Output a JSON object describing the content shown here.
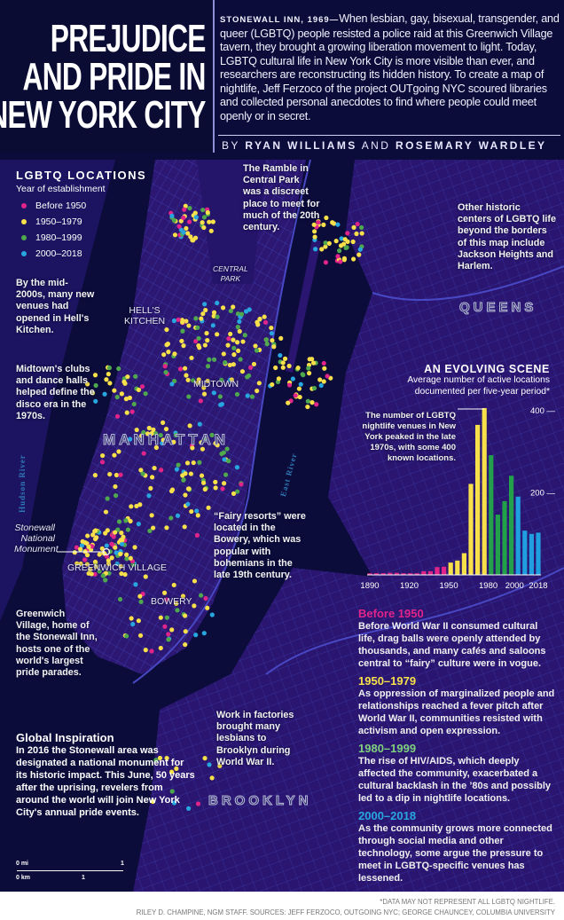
{
  "header": {
    "title_lines": [
      "PREJUDICE",
      "AND PRIDE IN",
      "NEW YORK CITY"
    ],
    "intro_lead": "STONEWALL INN, 1969—",
    "intro_text": "When lesbian, gay, bisexual, transgender, and queer (LGBTQ) people resisted a police raid at this Greenwich Village tavern, they brought a growing liberation movement to light. Today, LGBTQ cultural life in New York City is more visible than ever, and researchers are reconstructing its hidden history. To create a map of nightlife, Jeff Ferzoco of the project OUTgoing NYC scoured libraries and collected personal anecdotes to find where people could meet openly or in secret.",
    "byline_by": "BY",
    "author1": "RYAN WILLIAMS",
    "byline_and": "AND",
    "author2": "ROSEMARY WARDLEY"
  },
  "legend": {
    "title": "LGBTQ LOCATIONS",
    "subtitle": "Year of establishment",
    "items": [
      {
        "label": "Before 1950",
        "color": "#e0248a"
      },
      {
        "label": "1950–1979",
        "color": "#f7e04a"
      },
      {
        "label": "1980–1999",
        "color": "#4fa84e"
      },
      {
        "label": "2000–2018",
        "color": "#27a6e0"
      }
    ]
  },
  "map_labels": {
    "hells_kitchen": [
      "HELL'S",
      "KITCHEN"
    ],
    "central_park": [
      "CENTRAL",
      "PARK"
    ],
    "midtown": "MIDTOWN",
    "manhattan": "MANHATTAN",
    "hudson": "Hudson River",
    "east_river": "East River",
    "queens": "QUEENS",
    "brooklyn": "BROOKLYN",
    "greenwich": "GREENWICH VILLAGE",
    "bowery": "BOWERY",
    "stonewall": [
      "Stonewall",
      "National",
      "Monument"
    ],
    "scale_mi_0": "0 mi",
    "scale_mi_1": "1",
    "scale_km_0": "0 km",
    "scale_km_1": "1"
  },
  "annotations": {
    "hells_kitchen": {
      "text": "By the mid-2000s, many new venues had opened in ",
      "bold": "Hell's Kitchen."
    },
    "midtown": {
      "bold": "Midtown's",
      "text": " clubs and dance halls helped define the disco era in the 1970s."
    },
    "ramble": {
      "text1": "The Ramble in",
      "bold": "Central Park",
      "text2": "was a discreet place to meet for much of the 20th century."
    },
    "other_centers": "Other historic centers of LGBTQ life beyond the borders of this map include Jackson Heights and Harlem.",
    "fairy": {
      "text1": "“Fairy resorts” were located in the ",
      "bold": "Bowery",
      "text2": ", which was popular with bohemians in the late 19th century."
    },
    "greenwich": {
      "bold": "Greenwich Village",
      "text": ", home of the Stonewall Inn, hosts one of the world's largest pride parades."
    },
    "factories": {
      "text1": "Work in factories brought many lesbians to ",
      "bold": "Brooklyn",
      "text2": " during World War II."
    },
    "global": {
      "title": "Global Inspiration",
      "text": "In 2016 the Stonewall area was designated a national monument for its historic impact. This June, 50 years after the uprising, revelers from around the world will join New York City's annual pride events."
    }
  },
  "eras": [
    {
      "title": "Before 1950",
      "color": "#e0248a",
      "text": "Before World War II consumed cultural life, drag balls were openly attended by thousands, and many cafés and saloons central to “fairy” culture were in vogue."
    },
    {
      "title": "1950–1979",
      "color": "#f7e04a",
      "text": "As oppression of marginalized people and relationships reached a fever pitch after World War II, communities resisted with activism and open expression."
    },
    {
      "title": "1980–1999",
      "color": "#7fd07f",
      "text": "The rise of HIV/AIDS, which deeply affected the community, exacerbated a cultural backlash in the ’80s and possibly led to a dip in nightlife locations."
    },
    {
      "title": "2000–2018",
      "color": "#27a6e0",
      "text": "As the community grows more connected through social media and other technology, some argue the pressure to meet in LGBTQ-specific venues has lessened."
    }
  ],
  "chart_data": {
    "type": "bar",
    "title": "AN EVOLVING SCENE",
    "subtitle": "Average number of active locations documented per five-year period*",
    "annotation": "The number of LGBTQ nightlife venues in New York peaked in the late 1970s, with some 400 known locations.",
    "x_tick_labels": [
      "1890",
      "1920",
      "1950",
      "1980",
      "2000",
      "2018"
    ],
    "y_tick_labels": [
      "400",
      "200"
    ],
    "ylim": [
      0,
      420
    ],
    "x_range": [
      1890,
      2018
    ],
    "series": [
      {
        "era": "Before 1950",
        "color": "#e0248a",
        "values": [
          4,
          4,
          4,
          5,
          5,
          4,
          4,
          4,
          9,
          9,
          19,
          20
        ]
      },
      {
        "era": "1950–1979",
        "color": "#f7e04a",
        "values": [
          30,
          35,
          53,
          222,
          366,
          407
        ]
      },
      {
        "era": "1980–1999",
        "color": "#22a04a",
        "values": [
          292,
          147,
          180,
          242
        ]
      },
      {
        "era": "2000–2018",
        "color": "#1f9fe0",
        "values": [
          191,
          108,
          100,
          103
        ]
      }
    ]
  },
  "footer": {
    "note": "*DATA MAY NOT REPRESENT ALL LGBTQ NIGHTLIFE.",
    "credits": "RILEY D. CHAMPINE, NGM STAFF. SOURCES: JEFF FERZOCO, OUTGOING NYC; GEORGE CHAUNCEY, COLUMBIA UNIVERSITY"
  }
}
